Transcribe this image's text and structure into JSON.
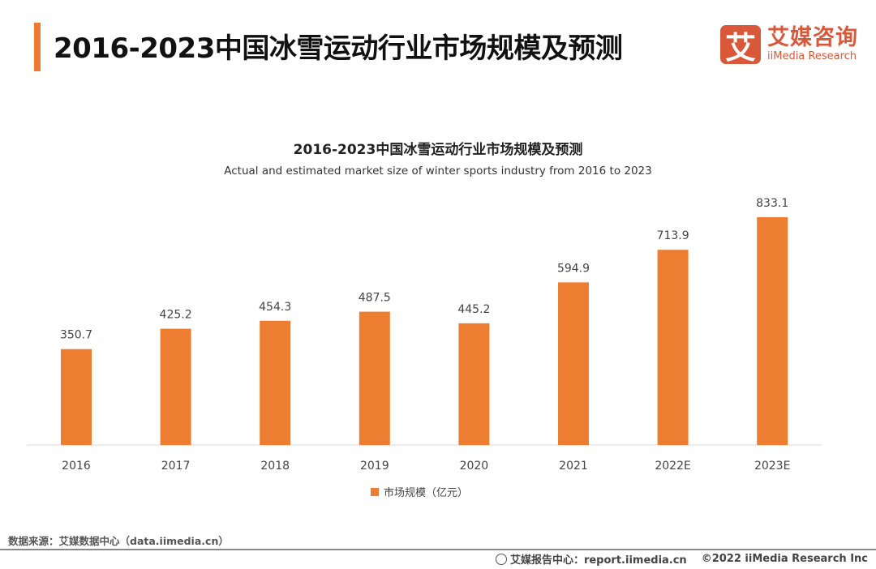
{
  "header": {
    "title": "2016-2023中国冰雪运动行业市场规模及预测"
  },
  "logo": {
    "mark": "艾",
    "cn": "艾媒咨询",
    "en": "iiMedia Research"
  },
  "chart_data": {
    "type": "bar",
    "title": "2016-2023中国冰雪运动行业市场规模及预测",
    "subtitle": "Actual and estimated market size of winter sports industry from 2016 to 2023",
    "categories": [
      "2016",
      "2017",
      "2018",
      "2019",
      "2020",
      "2021",
      "2022E",
      "2023E"
    ],
    "series": [
      {
        "name": "市场规模（亿元）",
        "values": [
          350.7,
          425.2,
          454.3,
          487.5,
          445.2,
          594.9,
          713.9,
          833.1
        ]
      }
    ],
    "color": "#ed7d31",
    "legend": "bottom",
    "grid": false,
    "ylim": [
      0,
      833.1
    ]
  },
  "footer": {
    "source": "数据来源：艾媒数据中心（data.iimedia.cn）",
    "report": "艾媒报告中心：report.iimedia.cn",
    "copyright": "©2022  iiMedia Research  Inc"
  }
}
